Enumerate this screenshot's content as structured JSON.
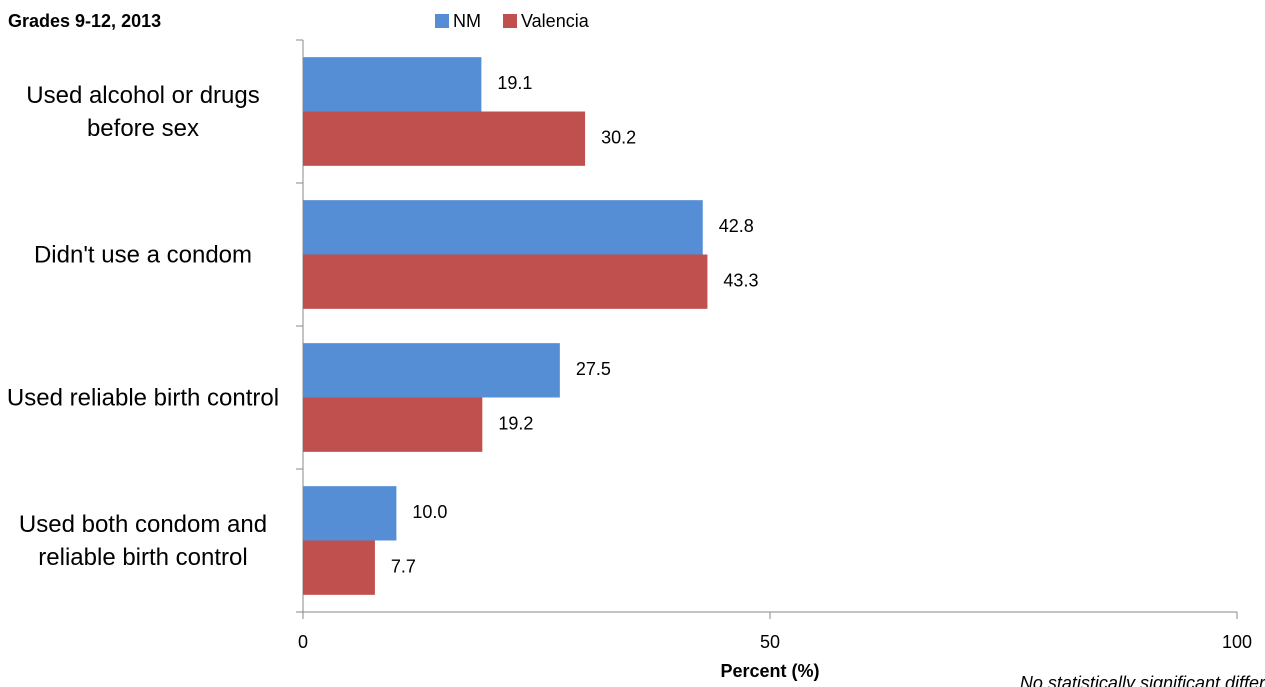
{
  "chart_data": {
    "type": "bar",
    "orientation": "horizontal",
    "title": "Grades 9-12, 2013",
    "categories": [
      "Used alcohol or drugs before sex",
      "Didn't use a condom",
      "Used reliable birth control",
      "Used both condom and reliable birth control"
    ],
    "series": [
      {
        "name": "NM",
        "color": "#558ed5",
        "values": [
          19.1,
          42.8,
          27.5,
          10
        ],
        "value_labels": [
          "19.1",
          "42.8",
          "27.5",
          "10.0"
        ]
      },
      {
        "name": "Valencia",
        "color": "#c0504d",
        "values": [
          30.2,
          43.3,
          19.2,
          7.7
        ],
        "value_labels": [
          "30.2",
          "43.3",
          "19.2",
          "7.7"
        ]
      }
    ],
    "xlim": [
      0,
      100
    ],
    "xticks": [
      0,
      50,
      100
    ],
    "x_label": "Percent (%)",
    "note": "No statistically significant differ",
    "grid": false
  }
}
